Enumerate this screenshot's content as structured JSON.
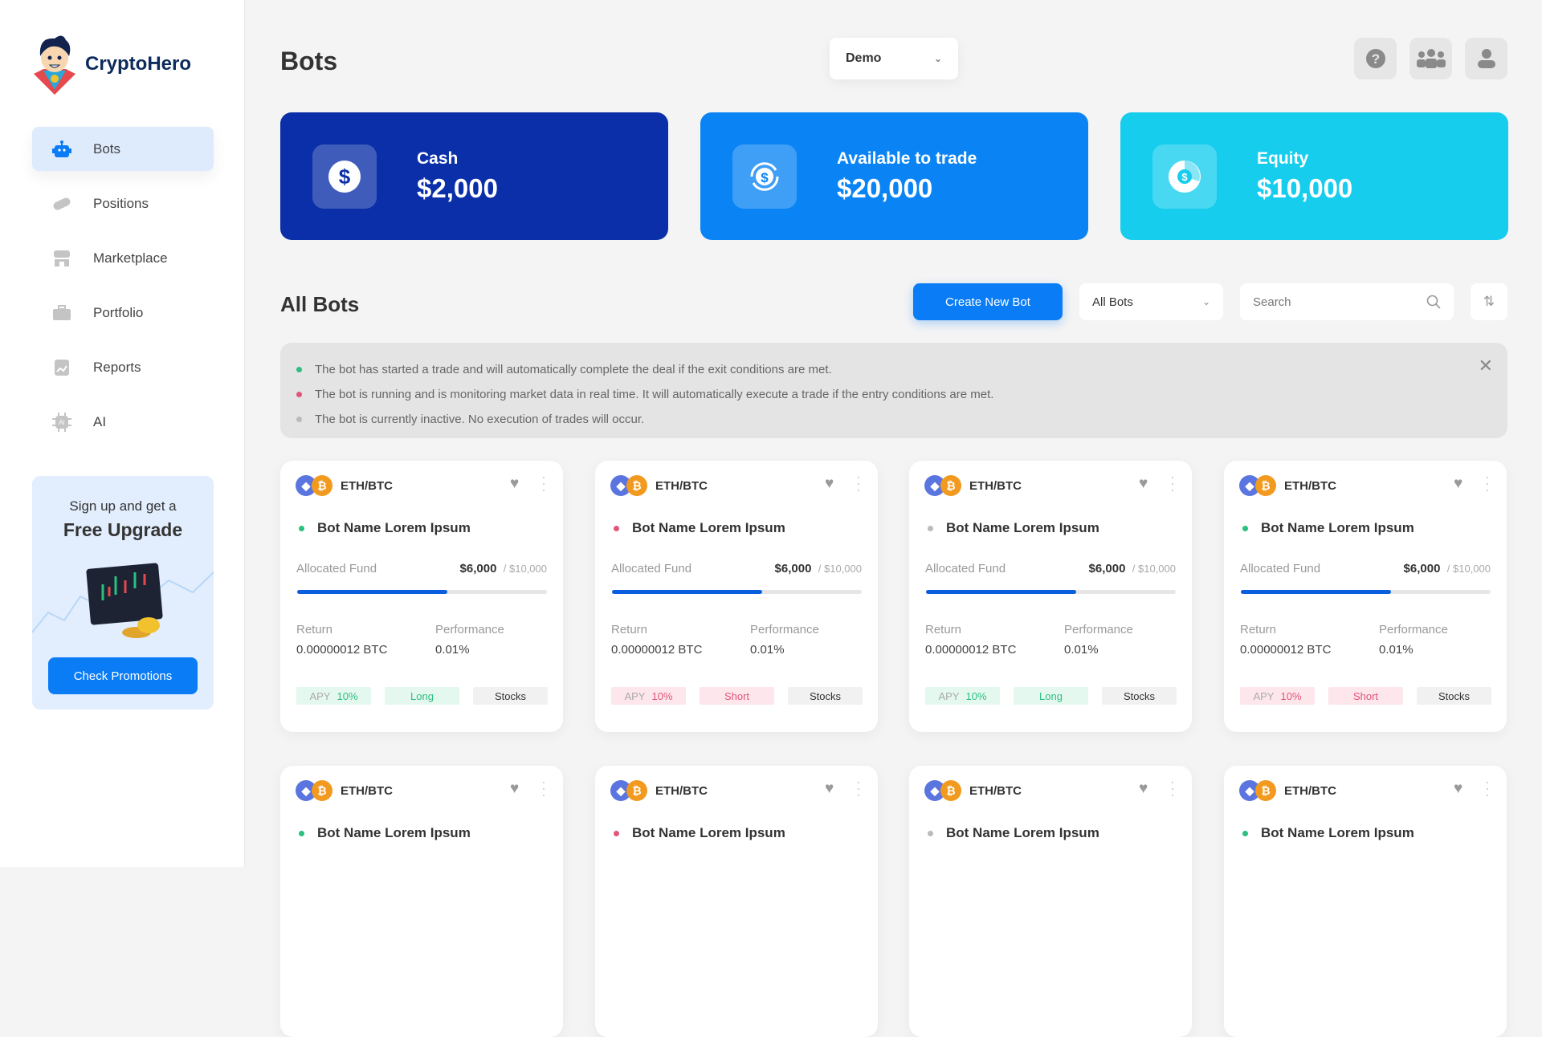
{
  "app": {
    "name": "CryptoHero"
  },
  "sidebar": {
    "items": [
      {
        "label": "Bots",
        "icon": "robot-icon",
        "active": true
      },
      {
        "label": "Positions",
        "icon": "pill-icon"
      },
      {
        "label": "Marketplace",
        "icon": "store-icon"
      },
      {
        "label": "Portfolio",
        "icon": "briefcase-icon"
      },
      {
        "label": "Reports",
        "icon": "report-icon"
      },
      {
        "label": "AI",
        "icon": "chip-icon"
      }
    ],
    "promo": {
      "line1": "Sign up and get a",
      "line2": "Free Upgrade",
      "button": "Check Promotions"
    }
  },
  "header": {
    "title": "Bots",
    "account_select": "Demo"
  },
  "stats": [
    {
      "label": "Cash",
      "value": "$2,000",
      "color": "#0a2fa8"
    },
    {
      "label": "Available to trade",
      "value": "$20,000",
      "color": "#0a84f5"
    },
    {
      "label": "Equity",
      "value": "$10,000",
      "color": "#16cdee"
    }
  ],
  "bots_section": {
    "title": "All Bots",
    "create_button": "Create New Bot",
    "filter": "All Bots",
    "search_placeholder": "Search"
  },
  "legend": [
    {
      "color": "#2bbf80",
      "text": "The bot has started a trade and will automatically complete the deal if the exit conditions are met."
    },
    {
      "color": "#e2557a",
      "text": "The bot is running and is monitoring market data in real time. It will automatically execute a trade if the entry conditions are met."
    },
    {
      "color": "#bbbbbb",
      "text": "The bot is currently inactive. No execution of trades will occur."
    }
  ],
  "cards": [
    {
      "pair": "ETH/BTC",
      "name": "Bot Name Lorem Ipsum",
      "status": "#2bbf80",
      "fund_label": "Allocated Fund",
      "fund": "$6,000",
      "fund_total": "/ $10,000",
      "fund_pct": 60,
      "return_label": "Return",
      "return": "0.00000012 BTC",
      "perf_label": "Performance",
      "perf": "0.01%",
      "apy_label": "APY",
      "apy": "10%",
      "side": "Long",
      "tone": "g",
      "market": "Stocks"
    },
    {
      "pair": "ETH/BTC",
      "name": "Bot Name Lorem Ipsum",
      "status": "#e2557a",
      "fund_label": "Allocated Fund",
      "fund": "$6,000",
      "fund_total": "/ $10,000",
      "fund_pct": 60,
      "return_label": "Return",
      "return": "0.00000012 BTC",
      "perf_label": "Performance",
      "perf": "0.01%",
      "apy_label": "APY",
      "apy": "10%",
      "side": "Short",
      "tone": "r",
      "market": "Stocks"
    },
    {
      "pair": "ETH/BTC",
      "name": "Bot Name Lorem Ipsum",
      "status": "#bbbbbb",
      "fund_label": "Allocated Fund",
      "fund": "$6,000",
      "fund_total": "/ $10,000",
      "fund_pct": 60,
      "return_label": "Return",
      "return": "0.00000012 BTC",
      "perf_label": "Performance",
      "perf": "0.01%",
      "apy_label": "APY",
      "apy": "10%",
      "side": "Long",
      "tone": "g",
      "market": "Stocks"
    },
    {
      "pair": "ETH/BTC",
      "name": "Bot Name Lorem Ipsum",
      "status": "#2bbf80",
      "fund_label": "Allocated Fund",
      "fund": "$6,000",
      "fund_total": "/ $10,000",
      "fund_pct": 60,
      "return_label": "Return",
      "return": "0.00000012 BTC",
      "perf_label": "Performance",
      "perf": "0.01%",
      "apy_label": "APY",
      "apy": "10%",
      "side": "Short",
      "tone": "r",
      "market": "Stocks"
    },
    {
      "pair": "ETH/BTC",
      "name": "Bot Name Lorem Ipsum",
      "status": "#2bbf80"
    },
    {
      "pair": "ETH/BTC",
      "name": "Bot Name Lorem Ipsum",
      "status": "#e2557a"
    },
    {
      "pair": "ETH/BTC",
      "name": "Bot Name Lorem Ipsum",
      "status": "#bbbbbb"
    },
    {
      "pair": "ETH/BTC",
      "name": "Bot Name Lorem Ipsum",
      "status": "#2bbf80"
    }
  ]
}
